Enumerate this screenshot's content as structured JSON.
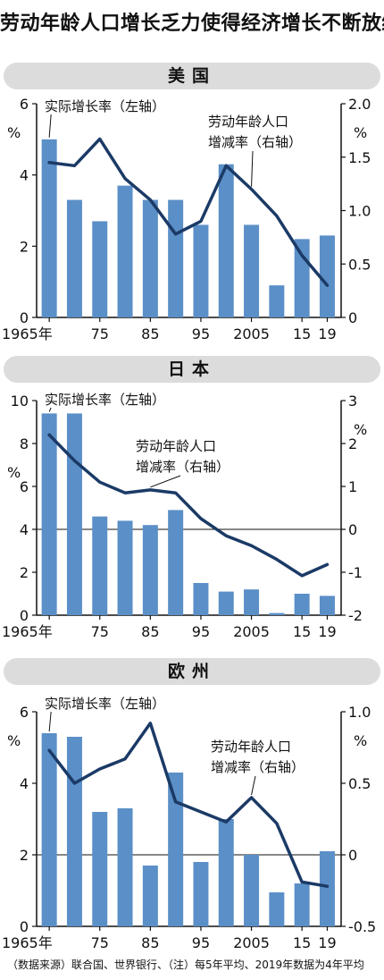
{
  "title": "劳动年龄人口增长乏力使得经济增长不断放缓",
  "footnote": "（数据来源）联合国、世界银行、（注）每5年平均、2019年数据为4年平均",
  "colors": {
    "bar": "#5b8fc7",
    "line": "#1b3a66",
    "header_bg": "#dcdcdc"
  },
  "chart_data": [
    {
      "type": "bar",
      "title": "美国",
      "x_tick_labels": [
        "1965年",
        "75",
        "85",
        "95",
        "2005",
        "15",
        "19"
      ],
      "categories": [
        "1965",
        "1970",
        "1975",
        "1980",
        "1985",
        "1990",
        "1995",
        "2000",
        "2005",
        "2010",
        "2015",
        "2019"
      ],
      "series": [
        {
          "name": "实际增长率（左轴）",
          "type": "bar",
          "axis": "left",
          "values": [
            5.0,
            3.3,
            2.7,
            3.7,
            3.3,
            3.3,
            2.6,
            4.3,
            2.6,
            0.9,
            2.2,
            2.3
          ]
        },
        {
          "name": "劳动年龄人口增减率（右轴）",
          "type": "line",
          "axis": "right",
          "values": [
            1.45,
            1.42,
            1.67,
            1.3,
            1.1,
            0.78,
            0.9,
            1.42,
            1.2,
            0.95,
            0.58,
            0.3
          ]
        }
      ],
      "left_axis": {
        "unit": "%",
        "ticks": [
          "0",
          "2",
          "4",
          "6"
        ],
        "ylim": [
          0,
          6
        ]
      },
      "right_axis": {
        "unit": "%",
        "ticks": [
          "0",
          "0.5",
          "1.0",
          "1.5",
          "2.0"
        ],
        "ylim": [
          0,
          2.0
        ]
      }
    },
    {
      "type": "bar",
      "title": "日本",
      "x_tick_labels": [
        "1965年",
        "75",
        "85",
        "95",
        "2005",
        "15",
        "19"
      ],
      "categories": [
        "1965",
        "1970",
        "1975",
        "1980",
        "1985",
        "1990",
        "1995",
        "2000",
        "2005",
        "2010",
        "2015",
        "2019"
      ],
      "series": [
        {
          "name": "实际增长率（左轴）",
          "type": "bar",
          "axis": "left",
          "values": [
            9.4,
            9.4,
            4.6,
            4.4,
            4.2,
            4.9,
            1.5,
            1.1,
            1.2,
            0.1,
            1.0,
            0.9
          ]
        },
        {
          "name": "劳动年龄人口增减率（右轴）",
          "type": "line",
          "axis": "right",
          "values": [
            2.2,
            1.6,
            1.1,
            0.85,
            0.92,
            0.85,
            0.25,
            -0.15,
            -0.38,
            -0.7,
            -1.08,
            -0.82
          ]
        }
      ],
      "left_axis": {
        "unit": "%",
        "ticks": [
          "0",
          "2",
          "4",
          "6",
          "8",
          "10"
        ],
        "ylim": [
          0,
          10
        ]
      },
      "right_axis": {
        "unit": "%",
        "ticks": [
          "-2",
          "-1",
          "0",
          "1",
          "2",
          "3"
        ],
        "ylim": [
          -2,
          3
        ]
      }
    },
    {
      "type": "bar",
      "title": "欧州",
      "x_tick_labels": [
        "1965年",
        "75",
        "85",
        "95",
        "2005",
        "15",
        "19"
      ],
      "categories": [
        "1965",
        "1970",
        "1975",
        "1980",
        "1985",
        "1990",
        "1995",
        "2000",
        "2005",
        "2010",
        "2015",
        "2019"
      ],
      "series": [
        {
          "name": "实际增长率（左轴）",
          "type": "bar",
          "axis": "left",
          "values": [
            5.4,
            5.3,
            3.2,
            3.3,
            1.7,
            4.3,
            1.8,
            3.0,
            2.0,
            0.95,
            1.2,
            2.1
          ]
        },
        {
          "name": "劳动年龄人口增减率（右轴）",
          "type": "line",
          "axis": "right",
          "values": [
            0.73,
            0.5,
            0.6,
            0.67,
            0.92,
            0.37,
            0.3,
            0.23,
            0.4,
            0.22,
            -0.19,
            -0.22
          ]
        }
      ],
      "left_axis": {
        "unit": "%",
        "ticks": [
          "0",
          "2",
          "4",
          "6"
        ],
        "ylim": [
          0,
          6
        ]
      },
      "right_axis": {
        "unit": "%",
        "ticks": [
          "-0.5",
          "0",
          "0.5",
          "1.0"
        ],
        "ylim": [
          -0.5,
          1.0
        ]
      }
    }
  ]
}
